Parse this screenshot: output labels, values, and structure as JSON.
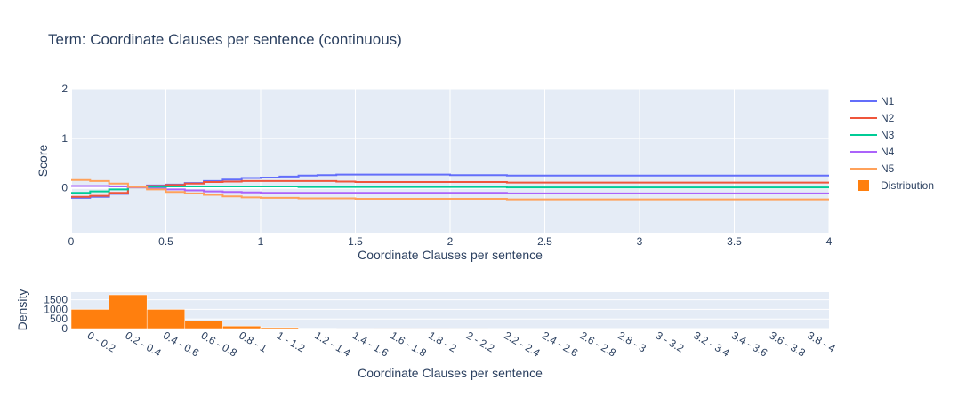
{
  "colors": {
    "plot_bg": "#e5ecf6",
    "grid": "#ffffff",
    "text": "#2a3f5f",
    "bar": "#ff7f0e"
  },
  "chart_data": [
    {
      "type": "line",
      "title": "Term: Coordinate Clauses per sentence (continuous)",
      "xlabel": "Coordinate Clauses per sentence",
      "ylabel": "Score",
      "xlim": [
        0,
        4
      ],
      "ylim": [
        -0.9,
        2
      ],
      "x_ticks": [
        "0",
        "0.5",
        "1",
        "1.5",
        "2",
        "2.5",
        "3",
        "3.5",
        "4"
      ],
      "y_ticks": [
        "0",
        "1",
        "2"
      ],
      "grid": true,
      "legend": "right",
      "series": [
        {
          "name": "N1",
          "color": "#636efa",
          "points": [
            [
              0,
              -0.2
            ],
            [
              0.1,
              -0.18
            ],
            [
              0.2,
              -0.12
            ],
            [
              0.3,
              0.02
            ],
            [
              0.4,
              0.05
            ],
            [
              0.5,
              0.07
            ],
            [
              0.6,
              0.1
            ],
            [
              0.7,
              0.14
            ],
            [
              0.8,
              0.17
            ],
            [
              0.9,
              0.2
            ],
            [
              1.0,
              0.21
            ],
            [
              1.1,
              0.23
            ],
            [
              1.2,
              0.25
            ],
            [
              1.3,
              0.26
            ],
            [
              1.4,
              0.27
            ],
            [
              1.5,
              0.27
            ],
            [
              1.8,
              0.27
            ],
            [
              1.9,
              0.27
            ],
            [
              2.0,
              0.26
            ],
            [
              2.2,
              0.26
            ],
            [
              2.3,
              0.25
            ],
            [
              3.0,
              0.25
            ],
            [
              4.0,
              0.25
            ]
          ]
        },
        {
          "name": "N2",
          "color": "#ef553b",
          "points": [
            [
              0,
              -0.18
            ],
            [
              0.1,
              -0.16
            ],
            [
              0.2,
              -0.1
            ],
            [
              0.3,
              0.01
            ],
            [
              0.4,
              0.04
            ],
            [
              0.5,
              0.06
            ],
            [
              0.6,
              0.09
            ],
            [
              0.7,
              0.12
            ],
            [
              0.8,
              0.13
            ],
            [
              0.9,
              0.14
            ],
            [
              1.0,
              0.14
            ],
            [
              1.2,
              0.14
            ],
            [
              1.4,
              0.13
            ],
            [
              1.5,
              0.12
            ],
            [
              2.0,
              0.12
            ],
            [
              2.2,
              0.12
            ],
            [
              2.3,
              0.11
            ],
            [
              3.0,
              0.11
            ],
            [
              4.0,
              0.11
            ]
          ]
        },
        {
          "name": "N3",
          "color": "#00cc96",
          "points": [
            [
              0,
              -0.1
            ],
            [
              0.1,
              -0.07
            ],
            [
              0.2,
              -0.03
            ],
            [
              0.3,
              0.01
            ],
            [
              0.4,
              0.02
            ],
            [
              0.5,
              0.03
            ],
            [
              0.7,
              0.03
            ],
            [
              1.0,
              0.03
            ],
            [
              1.2,
              0.02
            ],
            [
              1.5,
              0.02
            ],
            [
              2.0,
              0.02
            ],
            [
              2.2,
              0.02
            ],
            [
              2.3,
              0.01
            ],
            [
              3.0,
              0.01
            ],
            [
              4.0,
              0.01
            ]
          ]
        },
        {
          "name": "N4",
          "color": "#ab63fa",
          "points": [
            [
              0,
              0.04
            ],
            [
              0.1,
              0.04
            ],
            [
              0.2,
              0.03
            ],
            [
              0.3,
              0.01
            ],
            [
              0.4,
              -0.01
            ],
            [
              0.5,
              -0.03
            ],
            [
              0.6,
              -0.05
            ],
            [
              0.7,
              -0.07
            ],
            [
              0.8,
              -0.08
            ],
            [
              0.9,
              -0.09
            ],
            [
              1.0,
              -0.1
            ],
            [
              1.2,
              -0.1
            ],
            [
              1.5,
              -0.1
            ],
            [
              2.0,
              -0.1
            ],
            [
              2.2,
              -0.1
            ],
            [
              2.3,
              -0.11
            ],
            [
              3.0,
              -0.11
            ],
            [
              4.0,
              -0.11
            ]
          ]
        },
        {
          "name": "N5",
          "color": "#ffa15a",
          "points": [
            [
              0,
              0.16
            ],
            [
              0.05,
              0.16
            ],
            [
              0.1,
              0.14
            ],
            [
              0.2,
              0.09
            ],
            [
              0.3,
              0.02
            ],
            [
              0.4,
              -0.03
            ],
            [
              0.5,
              -0.08
            ],
            [
              0.6,
              -0.11
            ],
            [
              0.7,
              -0.14
            ],
            [
              0.8,
              -0.17
            ],
            [
              0.9,
              -0.19
            ],
            [
              1.0,
              -0.2
            ],
            [
              1.2,
              -0.21
            ],
            [
              1.5,
              -0.22
            ],
            [
              2.0,
              -0.22
            ],
            [
              2.2,
              -0.22
            ],
            [
              2.3,
              -0.23
            ],
            [
              3.0,
              -0.23
            ],
            [
              4.0,
              -0.23
            ]
          ]
        }
      ],
      "legend_extra": {
        "name": "Distribution",
        "color": "#ff7f0e",
        "symbol": "square"
      }
    },
    {
      "type": "bar",
      "xlabel": "Coordinate Clauses per sentence",
      "ylabel": "Density",
      "y_ticks": [
        "0",
        "500",
        "1000",
        "1500"
      ],
      "ylim": [
        0,
        1900
      ],
      "categories": [
        "0 - 0.2",
        "0.2 - 0.4",
        "0.4 - 0.6",
        "0.6 - 0.8",
        "0.8 - 1",
        "1 - 1.2",
        "1.2 - 1.4",
        "1.4 - 1.6",
        "1.6 - 1.8",
        "1.8 - 2",
        "2 - 2.2",
        "2.2 - 2.4",
        "2.4 - 2.6",
        "2.6 - 2.8",
        "2.8 - 3",
        "3 - 3.2",
        "3.2 - 3.4",
        "3.4 - 3.6",
        "3.6 - 3.8",
        "3.8 - 4"
      ],
      "values": [
        1000,
        1760,
        1000,
        390,
        130,
        55,
        20,
        10,
        5,
        3,
        2,
        0,
        0,
        0,
        0,
        0,
        0,
        0,
        0,
        0
      ]
    }
  ]
}
